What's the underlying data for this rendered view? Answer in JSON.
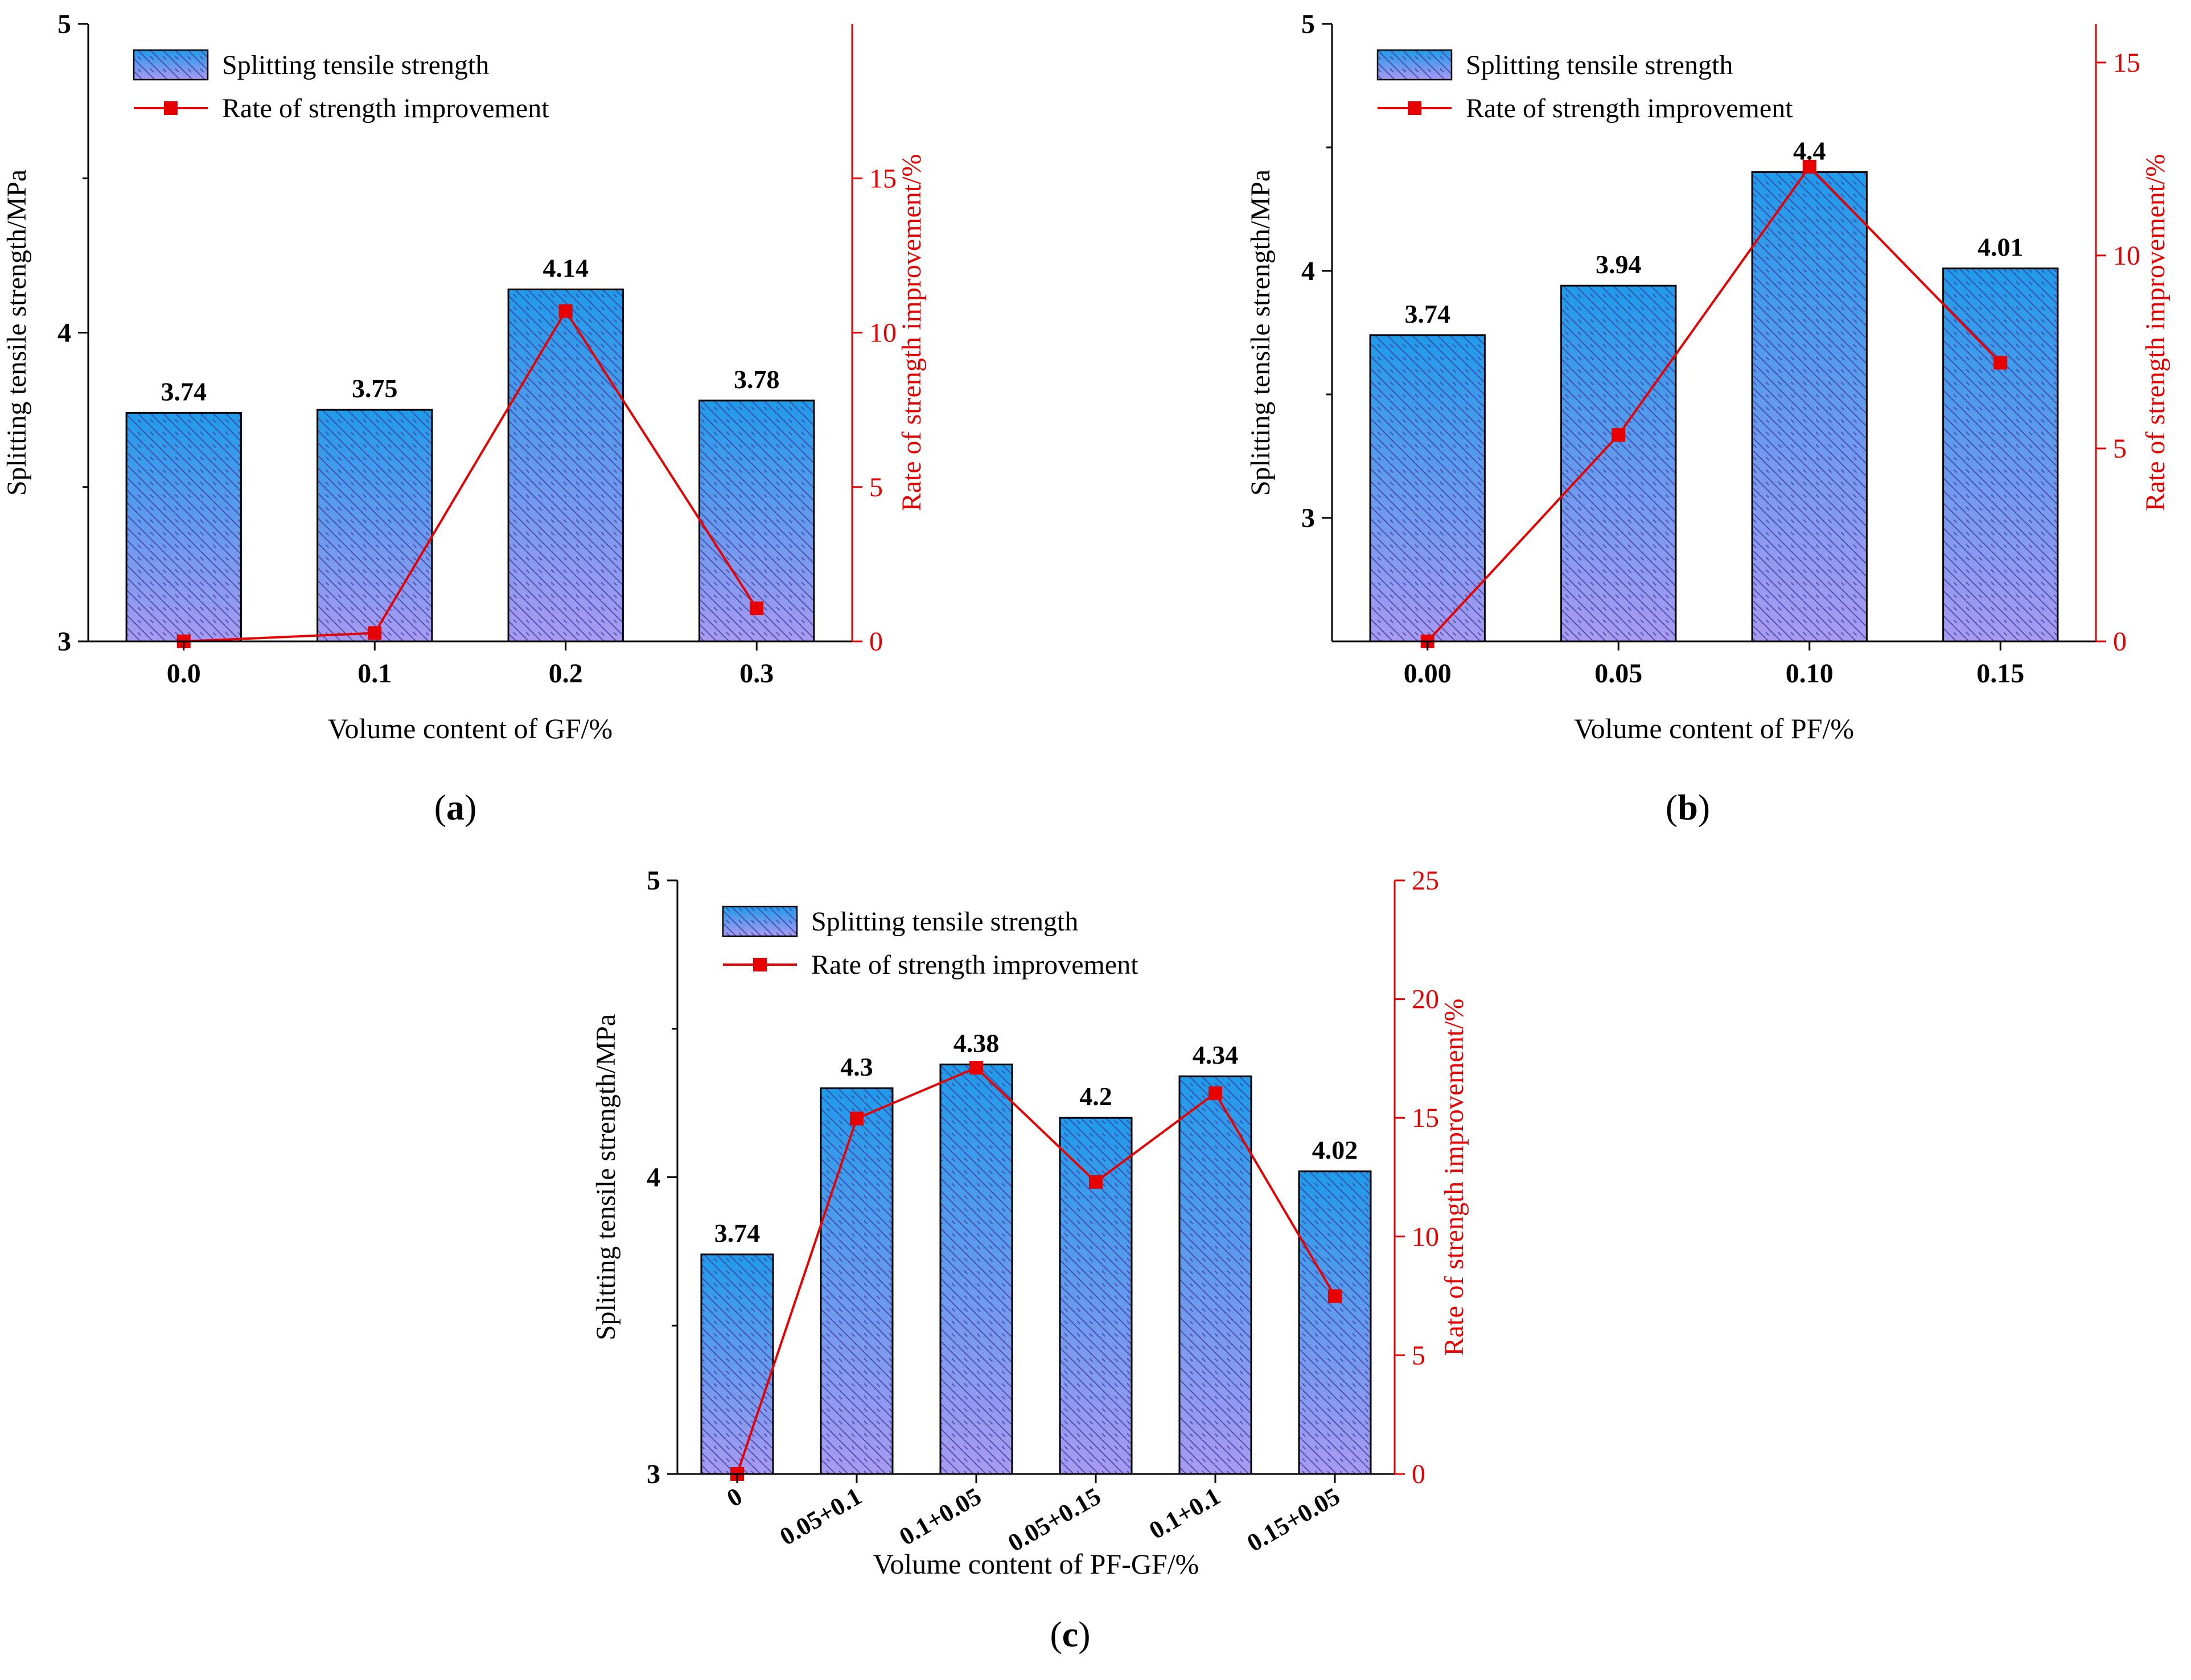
{
  "legend": {
    "bar_label": "Splitting tensile strength",
    "line_label": "Rate of strength improvement"
  },
  "colors": {
    "bar_top": "#1f9be9",
    "bar_bottom": "#a99af1",
    "hatch": "#3c3ca0",
    "line": "#e60000",
    "axis": "#000000"
  },
  "chart_data": [
    {
      "id": "a",
      "type": "bar",
      "panel_label": "a",
      "categories": [
        "0.0",
        "0.1",
        "0.2",
        "0.3"
      ],
      "values": [
        3.74,
        3.75,
        4.14,
        3.78
      ],
      "value_labels": [
        "3.74",
        "3.75",
        "4.14",
        "3.78"
      ],
      "line_values": [
        0,
        0.27,
        10.7,
        1.07
      ],
      "xlabel": "Volume content of GF/%",
      "ylabel": "Splitting tensile strength/MPa",
      "y2label": "Rate of strength improvement/%",
      "ylim": [
        3,
        5
      ],
      "y_major_ticks": [
        3,
        4,
        5
      ],
      "y_minor_ticks": [
        3.5,
        4.5
      ],
      "y2lim": [
        0,
        20
      ],
      "y2_ticks": [
        0,
        5,
        10,
        15
      ],
      "legend_position": "top-left",
      "grid": false
    },
    {
      "id": "b",
      "type": "bar",
      "panel_label": "b",
      "categories": [
        "0.00",
        "0.05",
        "0.10",
        "0.15"
      ],
      "values": [
        3.74,
        3.94,
        4.4,
        4.01
      ],
      "value_labels": [
        "3.74",
        "3.94",
        "4.4",
        "4.01"
      ],
      "line_values": [
        0,
        5.35,
        12.3,
        7.22
      ],
      "xlabel": "Volume content of PF/%",
      "ylabel": "Splitting tensile strength/MPa",
      "y2label": "Rate of strength improvement/%",
      "ylim": [
        2.5,
        5
      ],
      "y_major_ticks": [
        3,
        4,
        5
      ],
      "y_minor_ticks": [
        3.5,
        4.5
      ],
      "y2lim": [
        0,
        16
      ],
      "y2_ticks": [
        0,
        5,
        10,
        15
      ],
      "legend_position": "top-left",
      "grid": false
    },
    {
      "id": "c",
      "type": "bar",
      "panel_label": "c",
      "categories": [
        "0",
        "0.05+0.1",
        "0.1+0.05",
        "0.05+0.15",
        "0.1+0.1",
        "0.15+0.05"
      ],
      "values": [
        3.74,
        4.3,
        4.38,
        4.2,
        4.34,
        4.02
      ],
      "value_labels": [
        "3.74",
        "4.3",
        "4.38",
        "4.2",
        "4.34",
        "4.02"
      ],
      "line_values": [
        0,
        14.97,
        17.11,
        12.3,
        16.04,
        7.49
      ],
      "xlabel": "Volume content of PF-GF/%",
      "ylabel": "Splitting tensile strength/MPa",
      "y2label": "Rate of strength improvement/%",
      "ylim": [
        3,
        5
      ],
      "y_major_ticks": [
        3,
        4,
        5
      ],
      "y_minor_ticks": [
        3.5,
        4.5
      ],
      "y2lim": [
        0,
        25
      ],
      "y2_ticks": [
        0,
        5,
        10,
        15,
        20,
        25
      ],
      "legend_position": "top-left",
      "grid": false
    }
  ]
}
